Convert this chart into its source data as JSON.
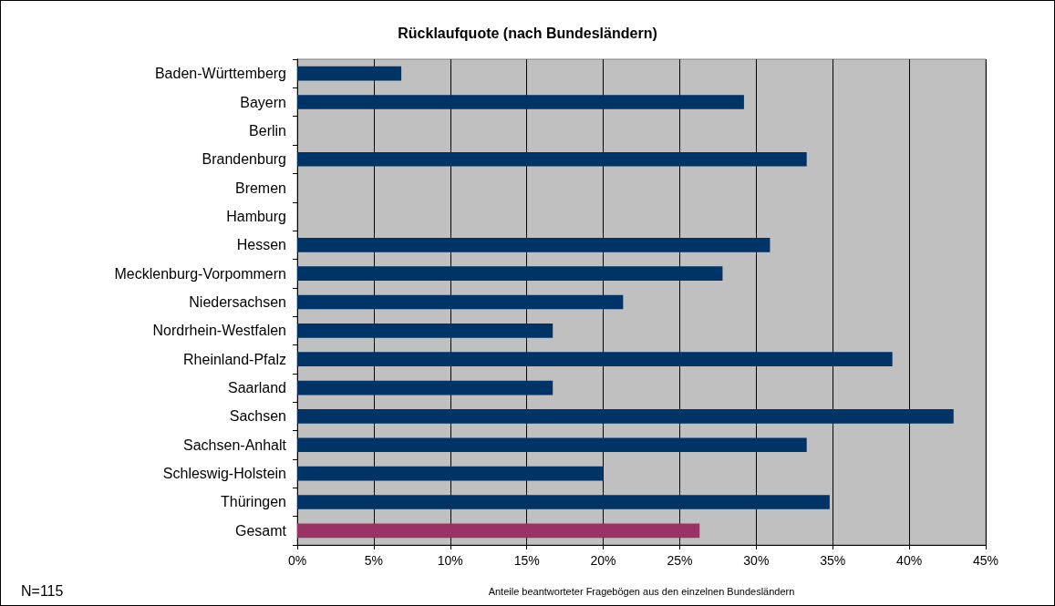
{
  "chart_data": {
    "type": "bar",
    "orientation": "horizontal",
    "title": "Rücklaufquote (nach Bundesländern)",
    "xlabel": "Anteile beantworteter Fragebögen aus den einzelnen Bundesländern",
    "annotations": [
      "N=115"
    ],
    "categories": [
      "Baden-Württemberg",
      "Bayern",
      "Berlin",
      "Brandenburg",
      "Bremen",
      "Hamburg",
      "Hessen",
      "Mecklenburg-Vorpommern",
      "Niedersachsen",
      "Nordrhein-Westfalen",
      "Rheinland-Pfalz",
      "Saarland",
      "Sachsen",
      "Sachsen-Anhalt",
      "Schleswig-Holstein",
      "Thüringen",
      "Gesamt"
    ],
    "values": [
      6.8,
      29.2,
      0,
      33.3,
      0,
      0,
      30.9,
      27.8,
      21.3,
      16.7,
      38.9,
      16.7,
      42.9,
      33.3,
      20.0,
      34.8,
      26.3
    ],
    "colors": [
      "#003366",
      "#003366",
      "#003366",
      "#003366",
      "#003366",
      "#003366",
      "#003366",
      "#003366",
      "#003366",
      "#003366",
      "#003366",
      "#003366",
      "#003366",
      "#003366",
      "#003366",
      "#003366",
      "#993366"
    ],
    "xlim": [
      0,
      45
    ],
    "xticks": [
      {
        "value": 0,
        "label": "0%"
      },
      {
        "value": 5,
        "label": "5%"
      },
      {
        "value": 10,
        "label": "10%"
      },
      {
        "value": 15,
        "label": "15%"
      },
      {
        "value": 20,
        "label": "20%"
      },
      {
        "value": 25,
        "label": "25%"
      },
      {
        "value": 30,
        "label": "30%"
      },
      {
        "value": 35,
        "label": "35%"
      },
      {
        "value": 40,
        "label": "40%"
      },
      {
        "value": 45,
        "label": "45%"
      }
    ],
    "grid": "x"
  }
}
